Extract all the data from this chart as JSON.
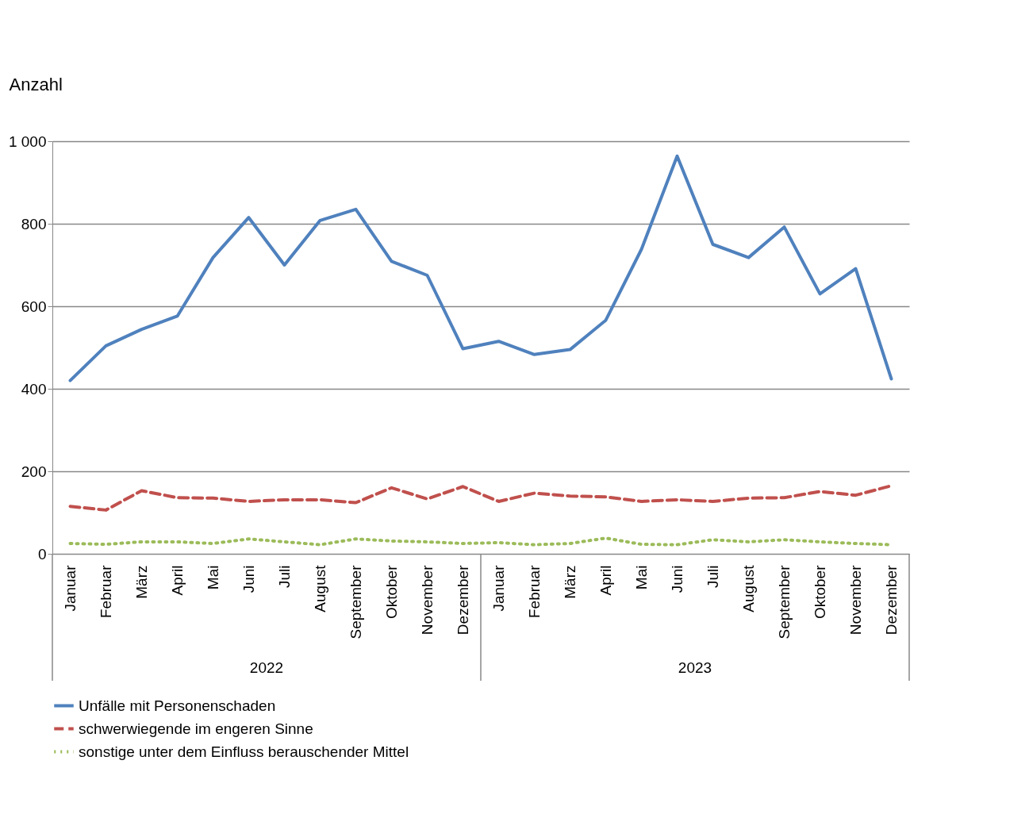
{
  "chart_data": {
    "type": "line",
    "ylabel": "Anzahl",
    "categories": [
      "Januar",
      "Februar",
      "März",
      "April",
      "Mai",
      "Juni",
      "Juli",
      "August",
      "September",
      "Oktober",
      "November",
      "Dezember",
      "Januar",
      "Februar",
      "März",
      "April",
      "Mai",
      "Juni",
      "Juli",
      "August",
      "September",
      "Oktober",
      "November",
      "Dezember"
    ],
    "series": [
      {
        "name": "Unfälle mit Personenschaden",
        "color": "#4f81bd",
        "line_style": "solid",
        "values": [
          420,
          504,
          544,
          576,
          718,
          815,
          700,
          808,
          835,
          709,
          675,
          497,
          515,
          483,
          495,
          566,
          738,
          964,
          750,
          718,
          792,
          630,
          691,
          424
        ]
      },
      {
        "name": "schwerwiegende im engeren Sinne",
        "color": "#c0504d",
        "line_style": "dashed",
        "values": [
          115,
          106,
          153,
          136,
          135,
          127,
          131,
          131,
          124,
          160,
          133,
          163,
          127,
          147,
          140,
          138,
          127,
          131,
          127,
          135,
          136,
          151,
          142,
          165
        ]
      },
      {
        "name": "sonstige unter dem Einfluss berauschender Mittel",
        "color": "#9bbb59",
        "line_style": "dotted",
        "values": [
          25,
          23,
          29,
          29,
          25,
          36,
          29,
          22,
          36,
          31,
          29,
          25,
          27,
          22,
          25,
          38,
          23,
          22,
          34,
          29,
          34,
          29,
          25,
          22
        ]
      }
    ],
    "ylim": [
      0,
      1000
    ],
    "yticks": [
      0,
      200,
      400,
      600,
      800,
      {
        "value": 1000,
        "label": "1 000"
      }
    ],
    "grid": "y",
    "legend": "bottom",
    "marker": "none",
    "annotations": [
      "2022",
      "2023"
    ]
  }
}
